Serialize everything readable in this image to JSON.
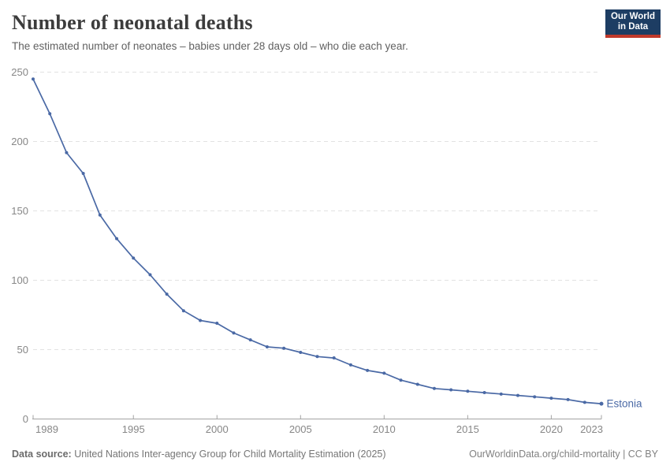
{
  "header": {
    "title": "Number of neonatal deaths",
    "subtitle": "The estimated number of neonates – babies under 28 days old – who die each year.",
    "logo": {
      "line1": "Our World",
      "line2": "in Data",
      "bg_color": "#1d3d63",
      "underline_color": "#c0392b"
    }
  },
  "chart_data": {
    "type": "line",
    "title": "Number of neonatal deaths",
    "xlabel": "",
    "ylabel": "",
    "x": [
      1989,
      1990,
      1991,
      1992,
      1993,
      1994,
      1995,
      1996,
      1997,
      1998,
      1999,
      2000,
      2001,
      2002,
      2003,
      2004,
      2005,
      2006,
      2007,
      2008,
      2009,
      2010,
      2011,
      2012,
      2013,
      2014,
      2015,
      2016,
      2017,
      2018,
      2019,
      2020,
      2021,
      2022,
      2023
    ],
    "series": [
      {
        "name": "Estonia",
        "color": "#4a69a5",
        "values": [
          245,
          220,
          192,
          177,
          147,
          130,
          116,
          104,
          90,
          78,
          71,
          69,
          62,
          57,
          52,
          51,
          48,
          45,
          44,
          39,
          35,
          33,
          28,
          25,
          22,
          21,
          20,
          19,
          18,
          17,
          16,
          15,
          14,
          12,
          11
        ]
      }
    ],
    "ylim": [
      0,
      250
    ],
    "yticks": [
      0,
      50,
      100,
      150,
      200,
      250
    ],
    "xticks": [
      1989,
      1995,
      2000,
      2005,
      2010,
      2015,
      2020,
      2023
    ],
    "grid": "horizontal-dashed",
    "legend_position": "end-of-line-label",
    "end_label": "Estonia",
    "grid_color": "#e2e2e2",
    "axis_color": "#a3a3a3",
    "tick_label_color": "#878787"
  },
  "footer": {
    "datasource_label": "Data source:",
    "datasource_text": " United Nations Inter-agency Group for Child Mortality Estimation (2025)",
    "url_text": "OurWorldinData.org/child-mortality | CC BY"
  }
}
